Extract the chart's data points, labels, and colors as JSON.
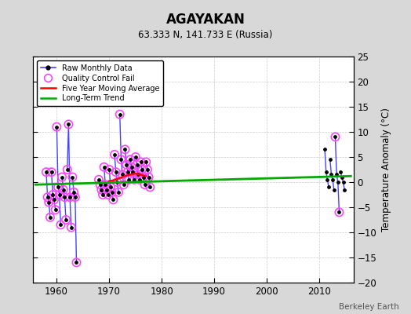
{
  "title": "AGAYAKAN",
  "subtitle": "63.333 N, 141.733 E (Russia)",
  "ylabel": "Temperature Anomaly (°C)",
  "attribution": "Berkeley Earth",
  "xlim": [
    1955.5,
    2016.5
  ],
  "ylim": [
    -20,
    25
  ],
  "yticks": [
    -20,
    -15,
    -10,
    -5,
    0,
    5,
    10,
    15,
    20,
    25
  ],
  "xticks": [
    1960,
    1970,
    1980,
    1990,
    2000,
    2010
  ],
  "bg_color": "#d8d8d8",
  "plot_bg_color": "#ffffff",
  "raw_color": "#4444ff",
  "qc_color": "#ff44ff",
  "ma_color": "#ff0000",
  "trend_color": "#00aa00",
  "raw_monthly_data": [
    [
      1958.04,
      2.0
    ],
    [
      1958.29,
      -3.0
    ],
    [
      1958.54,
      -4.0
    ],
    [
      1958.79,
      -7.0
    ],
    [
      1959.04,
      2.0
    ],
    [
      1959.29,
      -2.5
    ],
    [
      1959.54,
      -3.5
    ],
    [
      1959.79,
      -5.5
    ],
    [
      1960.04,
      11.0
    ],
    [
      1960.29,
      -1.0
    ],
    [
      1960.54,
      -2.5
    ],
    [
      1960.79,
      -8.5
    ],
    [
      1961.04,
      1.0
    ],
    [
      1961.29,
      -1.5
    ],
    [
      1961.54,
      -3.0
    ],
    [
      1961.79,
      -7.5
    ],
    [
      1962.04,
      2.5
    ],
    [
      1962.29,
      11.5
    ],
    [
      1962.54,
      -3.0
    ],
    [
      1962.79,
      -9.0
    ],
    [
      1963.04,
      1.0
    ],
    [
      1963.29,
      -2.0
    ],
    [
      1963.54,
      -3.0
    ],
    [
      1963.79,
      -16.0
    ],
    [
      1968.04,
      0.5
    ],
    [
      1968.29,
      -0.5
    ],
    [
      1968.54,
      -1.5
    ],
    [
      1968.79,
      -2.5
    ],
    [
      1969.04,
      3.0
    ],
    [
      1969.29,
      -0.5
    ],
    [
      1969.54,
      -1.5
    ],
    [
      1969.79,
      -2.5
    ],
    [
      1970.04,
      2.5
    ],
    [
      1970.29,
      -1.0
    ],
    [
      1970.54,
      -2.0
    ],
    [
      1970.79,
      -3.5
    ],
    [
      1971.04,
      5.5
    ],
    [
      1971.29,
      2.0
    ],
    [
      1971.54,
      0.0
    ],
    [
      1971.79,
      -2.0
    ],
    [
      1972.04,
      13.5
    ],
    [
      1972.29,
      4.5
    ],
    [
      1972.54,
      1.5
    ],
    [
      1972.79,
      -0.5
    ],
    [
      1973.04,
      6.5
    ],
    [
      1973.29,
      3.5
    ],
    [
      1973.54,
      2.0
    ],
    [
      1973.79,
      0.5
    ],
    [
      1974.04,
      4.5
    ],
    [
      1974.29,
      3.0
    ],
    [
      1974.54,
      2.0
    ],
    [
      1974.79,
      0.5
    ],
    [
      1975.04,
      5.0
    ],
    [
      1975.29,
      3.5
    ],
    [
      1975.54,
      1.5
    ],
    [
      1975.79,
      0.5
    ],
    [
      1976.04,
      4.0
    ],
    [
      1976.29,
      2.5
    ],
    [
      1976.54,
      1.0
    ],
    [
      1976.79,
      -0.5
    ],
    [
      1977.04,
      4.0
    ],
    [
      1977.29,
      2.5
    ],
    [
      1977.54,
      1.0
    ],
    [
      1977.79,
      -1.0
    ],
    [
      2011.04,
      6.5
    ],
    [
      2011.29,
      2.0
    ],
    [
      2011.54,
      0.5
    ],
    [
      2011.79,
      -1.0
    ],
    [
      2012.04,
      4.5
    ],
    [
      2012.29,
      1.5
    ],
    [
      2012.54,
      0.5
    ],
    [
      2012.79,
      -1.5
    ],
    [
      2013.04,
      9.0
    ],
    [
      2013.29,
      1.5
    ],
    [
      2013.54,
      0.0
    ],
    [
      2013.79,
      -6.0
    ],
    [
      2014.04,
      2.0
    ],
    [
      2014.29,
      1.0
    ],
    [
      2014.54,
      0.0
    ],
    [
      2014.79,
      -1.5
    ]
  ],
  "qc_fail_data": [
    [
      1958.04,
      2.0
    ],
    [
      1958.29,
      -3.0
    ],
    [
      1958.54,
      -4.0
    ],
    [
      1958.79,
      -7.0
    ],
    [
      1959.04,
      2.0
    ],
    [
      1959.29,
      -2.5
    ],
    [
      1959.54,
      -3.5
    ],
    [
      1959.79,
      -5.5
    ],
    [
      1960.04,
      11.0
    ],
    [
      1960.29,
      -1.0
    ],
    [
      1960.54,
      -2.5
    ],
    [
      1960.79,
      -8.5
    ],
    [
      1961.04,
      1.0
    ],
    [
      1961.29,
      -1.5
    ],
    [
      1961.54,
      -3.0
    ],
    [
      1961.79,
      -7.5
    ],
    [
      1962.04,
      2.5
    ],
    [
      1962.29,
      11.5
    ],
    [
      1962.54,
      -3.0
    ],
    [
      1962.79,
      -9.0
    ],
    [
      1963.04,
      1.0
    ],
    [
      1963.29,
      -2.0
    ],
    [
      1963.54,
      -3.0
    ],
    [
      1963.79,
      -16.0
    ],
    [
      1968.04,
      0.5
    ],
    [
      1968.29,
      -0.5
    ],
    [
      1968.54,
      -1.5
    ],
    [
      1968.79,
      -2.5
    ],
    [
      1969.04,
      3.0
    ],
    [
      1969.29,
      -0.5
    ],
    [
      1969.54,
      -1.5
    ],
    [
      1969.79,
      -2.5
    ],
    [
      1970.04,
      2.5
    ],
    [
      1970.29,
      -1.0
    ],
    [
      1970.54,
      -2.0
    ],
    [
      1970.79,
      -3.5
    ],
    [
      1971.04,
      5.5
    ],
    [
      1971.29,
      2.0
    ],
    [
      1971.54,
      0.0
    ],
    [
      1971.79,
      -2.0
    ],
    [
      1972.04,
      13.5
    ],
    [
      1972.29,
      4.5
    ],
    [
      1972.54,
      1.5
    ],
    [
      1972.79,
      -0.5
    ],
    [
      1973.04,
      6.5
    ],
    [
      1973.29,
      3.5
    ],
    [
      1973.54,
      2.0
    ],
    [
      1973.79,
      0.5
    ],
    [
      1974.04,
      4.5
    ],
    [
      1974.29,
      3.0
    ],
    [
      1974.54,
      2.0
    ],
    [
      1974.79,
      0.5
    ],
    [
      1975.04,
      5.0
    ],
    [
      1975.29,
      3.5
    ],
    [
      1975.54,
      1.5
    ],
    [
      1975.79,
      0.5
    ],
    [
      1976.04,
      4.0
    ],
    [
      1976.29,
      2.5
    ],
    [
      1976.54,
      1.0
    ],
    [
      1976.79,
      -0.5
    ],
    [
      1977.04,
      4.0
    ],
    [
      1977.29,
      2.5
    ],
    [
      1977.54,
      1.0
    ],
    [
      1977.79,
      -1.0
    ],
    [
      2013.04,
      9.0
    ],
    [
      2013.79,
      -6.0
    ]
  ],
  "moving_avg_x": [
    1970.0,
    1971.0,
    1972.0,
    1973.0,
    1974.0,
    1975.0,
    1976.0,
    1977.0
  ],
  "moving_avg_y": [
    0.2,
    0.4,
    0.8,
    1.2,
    1.5,
    1.7,
    1.5,
    1.2
  ],
  "trend_x": [
    1956,
    2016
  ],
  "trend_y": [
    -0.5,
    1.2
  ]
}
